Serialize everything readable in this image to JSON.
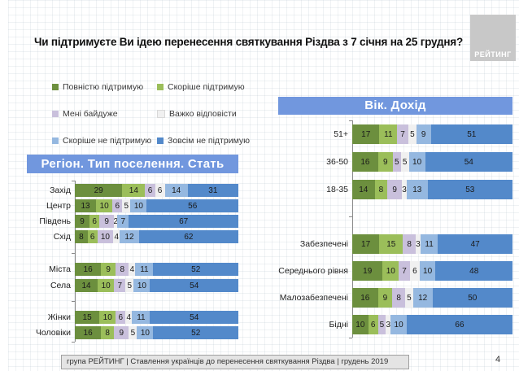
{
  "slide": {
    "title": "Чи підтримуєте Ви ідею перенесення святкування Різдва з 7 січня на 25 грудня?",
    "logo_text": "РЕЙТИНГ",
    "footer_text": "група РЕЙТИНГ | Ставлення українців до перенесення святкування Різдва | грудень 2019",
    "page_number": "4"
  },
  "colors": {
    "fully_support": "#6C8F3E",
    "rather_support": "#9BBE5A",
    "indifferent": "#C9C0DC",
    "hard_to_say": "#F0F0F0",
    "rather_not_support": "#95B8E0",
    "not_support_at_all": "#5389CA",
    "panel_header_bg": "#7197DE",
    "logo_bg": "#C8C8C8",
    "footer_bg": "#E4E4E4"
  },
  "legend": {
    "items": [
      {
        "label": "Повністю підтримую",
        "color_key": "fully_support"
      },
      {
        "label": "Скоріше підтримую",
        "color_key": "rather_support"
      },
      {
        "label": "Мені байдуже",
        "color_key": "indifferent"
      },
      {
        "label": "Важко відповісти",
        "color_key": "hard_to_say"
      },
      {
        "label": "Скоріше не підтримую",
        "color_key": "rather_not_support"
      },
      {
        "label": "Зовсім не підтримую",
        "color_key": "not_support_at_all"
      }
    ]
  },
  "chart_data": [
    {
      "type": "bar",
      "stacked": true,
      "orientation": "horizontal",
      "title": "Регіон. Тип поселення. Стать",
      "value_unit": "%",
      "xlim": [
        0,
        100
      ],
      "series": [
        "Повністю підтримую",
        "Скоріше підтримую",
        "Мені байдуже",
        "Важко відповісти",
        "Скоріше не підтримую",
        "Зовсім не підтримую"
      ],
      "groups": [
        {
          "rows": [
            {
              "category": "Захід",
              "values": [
                29,
                14,
                6,
                6,
                14,
                31
              ]
            },
            {
              "category": "Центр",
              "values": [
                13,
                10,
                6,
                5,
                10,
                56
              ]
            },
            {
              "category": "Південь",
              "values": [
                9,
                6,
                9,
                2,
                7,
                67
              ]
            },
            {
              "category": "Схід",
              "values": [
                8,
                6,
                10,
                4,
                12,
                62
              ]
            }
          ]
        },
        {
          "rows": [
            {
              "category": "Міста",
              "values": [
                16,
                9,
                8,
                4,
                11,
                52
              ]
            },
            {
              "category": "Села",
              "values": [
                14,
                10,
                7,
                5,
                10,
                54
              ]
            }
          ]
        },
        {
          "rows": [
            {
              "category": "Жінки",
              "values": [
                15,
                10,
                6,
                4,
                11,
                54
              ]
            },
            {
              "category": "Чоловіки",
              "values": [
                16,
                8,
                9,
                5,
                10,
                52
              ]
            }
          ]
        }
      ]
    },
    {
      "type": "bar",
      "stacked": true,
      "orientation": "horizontal",
      "title": "Вік. Дохід",
      "value_unit": "%",
      "xlim": [
        0,
        100
      ],
      "series": [
        "Повністю підтримую",
        "Скоріше підтримую",
        "Мені байдуже",
        "Важко відповісти",
        "Скоріше не підтримую",
        "Зовсім не підтримую"
      ],
      "groups": [
        {
          "rows": [
            {
              "category": "51+",
              "values": [
                17,
                11,
                7,
                5,
                9,
                51
              ]
            },
            {
              "category": "36-50",
              "values": [
                16,
                9,
                5,
                5,
                10,
                54
              ]
            },
            {
              "category": "18-35",
              "values": [
                14,
                8,
                9,
                3,
                13,
                53
              ]
            }
          ]
        },
        {
          "rows": [
            {
              "category": "Забезпечені",
              "values": [
                17,
                15,
                8,
                3,
                11,
                47
              ]
            },
            {
              "category": "Середнього рівня",
              "values": [
                19,
                10,
                7,
                6,
                10,
                48
              ]
            },
            {
              "category": "Малозабезпечені",
              "values": [
                16,
                9,
                8,
                5,
                12,
                50
              ]
            },
            {
              "category": "Бідні",
              "values": [
                10,
                6,
                5,
                3,
                10,
                66
              ]
            }
          ]
        }
      ]
    }
  ]
}
